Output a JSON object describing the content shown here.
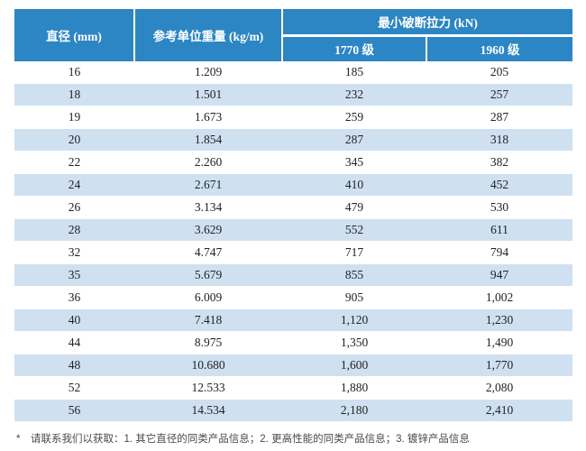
{
  "table": {
    "header": {
      "diameter": "直径 (mm)",
      "unit_weight": "参考单位重量 (kg/m)",
      "breaking_force": "最小破断拉力 (kN)",
      "grade_1770": "1770 级",
      "grade_1960": "1960 级"
    },
    "rows": [
      [
        "16",
        "1.209",
        "185",
        "205"
      ],
      [
        "18",
        "1.501",
        "232",
        "257"
      ],
      [
        "19",
        "1.673",
        "259",
        "287"
      ],
      [
        "20",
        "1.854",
        "287",
        "318"
      ],
      [
        "22",
        "2.260",
        "345",
        "382"
      ],
      [
        "24",
        "2.671",
        "410",
        "452"
      ],
      [
        "26",
        "3.134",
        "479",
        "530"
      ],
      [
        "28",
        "3.629",
        "552",
        "611"
      ],
      [
        "32",
        "4.747",
        "717",
        "794"
      ],
      [
        "35",
        "5.679",
        "855",
        "947"
      ],
      [
        "36",
        "6.009",
        "905",
        "1,002"
      ],
      [
        "40",
        "7.418",
        "1,120",
        "1,230"
      ],
      [
        "44",
        "8.975",
        "1,350",
        "1,490"
      ],
      [
        "48",
        "10.680",
        "1,600",
        "1,770"
      ],
      [
        "52",
        "12.533",
        "1,880",
        "2,080"
      ],
      [
        "56",
        "14.534",
        "2,180",
        "2,410"
      ]
    ]
  },
  "footnote": {
    "marker": "*",
    "text": "请联系我们以获取：1. 其它直径的同类产品信息；2. 更高性能的同类产品信息；3. 镀锌产品信息"
  },
  "colors": {
    "header_blue": "#2c86c4",
    "row_shade": "#cfe0f1",
    "data_text": "#222222",
    "footnote_text": "#4a4a4a"
  }
}
